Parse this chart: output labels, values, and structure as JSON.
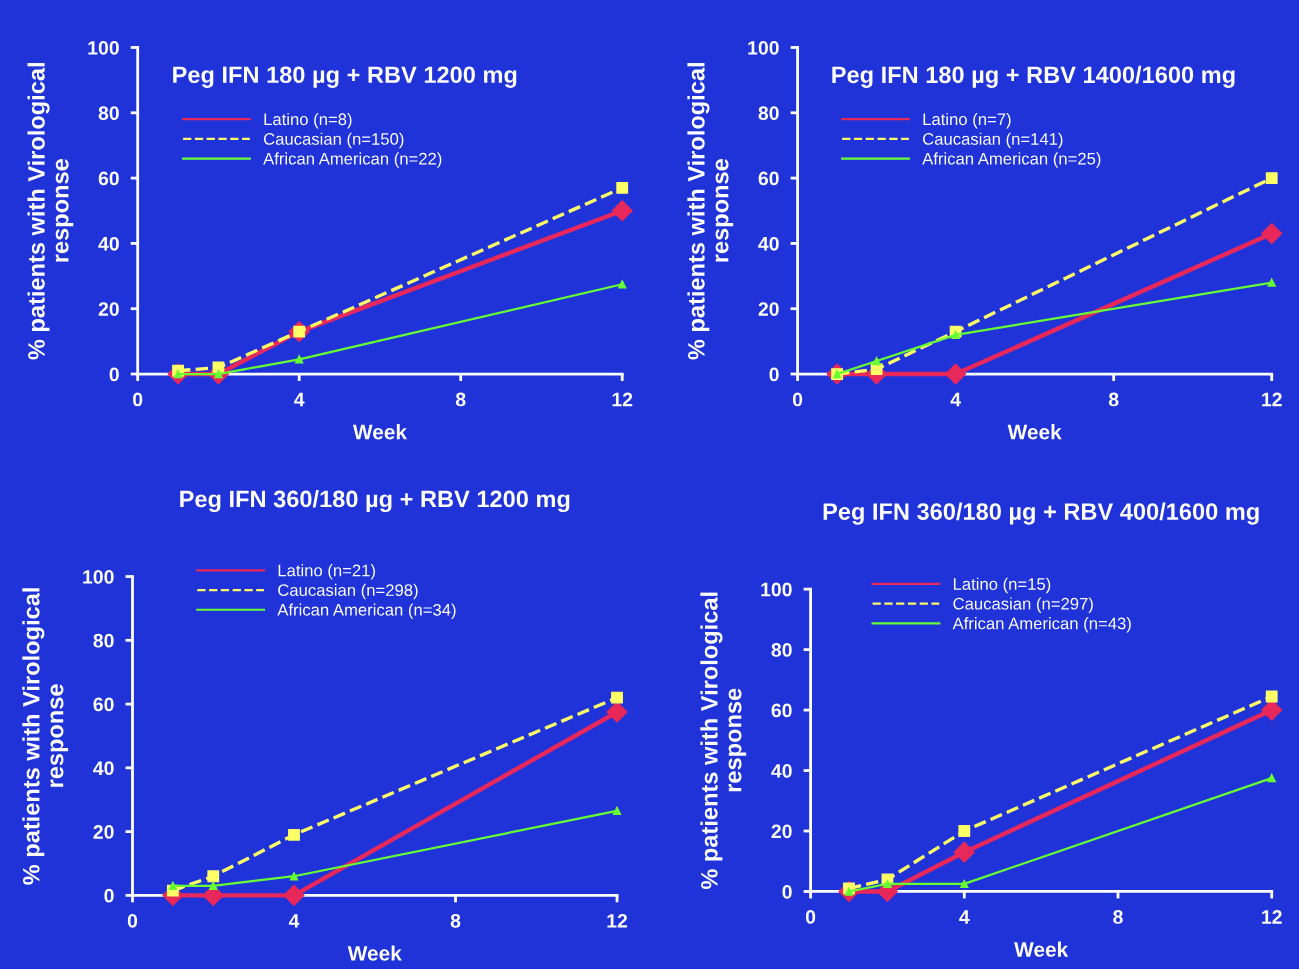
{
  "chart_data": [
    {
      "type": "line",
      "title": "Peg IFN 180 µg + RBV 1200 mg",
      "xlabel": "Week",
      "ylabel": "% patients with Virological\nresponse",
      "x": [
        1,
        2,
        4,
        12
      ],
      "xlim": [
        0,
        12
      ],
      "xticks": [
        0,
        4,
        8,
        12
      ],
      "ylim": [
        0,
        100
      ],
      "yticks": [
        0,
        20,
        40,
        60,
        80,
        100
      ],
      "grid": false,
      "legend": "top left",
      "series": [
        {
          "name": "Latino (n=8)",
          "color": "#e8285a",
          "marker": "diamond",
          "line_style": "solid",
          "values": [
            0,
            0,
            13,
            50
          ]
        },
        {
          "name": "Caucasian (n=150)",
          "color": "#ffff66",
          "marker": "square",
          "line_style": "dashed",
          "values": [
            1,
            2,
            13,
            57
          ]
        },
        {
          "name": "African American (n=22)",
          "color": "#66ff33",
          "marker": "triangle",
          "line_style": "solid",
          "values": [
            0,
            0,
            4.5,
            27.5
          ]
        }
      ]
    },
    {
      "type": "line",
      "title": "Peg IFN 180 µg + RBV 1400/1600 mg",
      "xlabel": "Week",
      "ylabel": "% patients with Virological\nresponse",
      "x": [
        1,
        2,
        4,
        12
      ],
      "xlim": [
        0,
        12
      ],
      "xticks": [
        0,
        4,
        8,
        12
      ],
      "ylim": [
        0,
        100
      ],
      "yticks": [
        0,
        20,
        40,
        60,
        80,
        100
      ],
      "grid": false,
      "legend": "top left",
      "series": [
        {
          "name": "Latino (n=7)",
          "color": "#e8285a",
          "marker": "diamond",
          "line_style": "solid",
          "values": [
            0,
            0,
            0,
            43
          ]
        },
        {
          "name": "Caucasian (n=141)",
          "color": "#ffff66",
          "marker": "square",
          "line_style": "dashed",
          "values": [
            0,
            1.5,
            13,
            60
          ]
        },
        {
          "name": "African American (n=25)",
          "color": "#66ff33",
          "marker": "triangle",
          "line_style": "solid",
          "values": [
            0,
            4,
            12,
            28
          ]
        }
      ]
    },
    {
      "type": "line",
      "title": "Peg IFN 360/180 µg + RBV 1200 mg",
      "xlabel": "Week",
      "ylabel": "% patients with Virological\nresponse",
      "x": [
        1,
        2,
        4,
        12
      ],
      "xlim": [
        0,
        12
      ],
      "xticks": [
        0,
        4,
        8,
        12
      ],
      "ylim": [
        0,
        100
      ],
      "yticks": [
        0,
        20,
        40,
        60,
        80,
        100
      ],
      "grid": false,
      "legend": "top left",
      "series": [
        {
          "name": "Latino (n=21)",
          "color": "#e8285a",
          "marker": "diamond",
          "line_style": "solid",
          "values": [
            0,
            0,
            0,
            57.5
          ]
        },
        {
          "name": "Caucasian (n=298)",
          "color": "#ffff66",
          "marker": "square",
          "line_style": "dashed",
          "values": [
            1.5,
            6,
            19,
            62
          ]
        },
        {
          "name": "African American (n=34)",
          "color": "#66ff33",
          "marker": "triangle",
          "line_style": "solid",
          "values": [
            3,
            3,
            6,
            26.5
          ]
        }
      ]
    },
    {
      "type": "line",
      "title": "Peg IFN 360/180 µg + RBV 400/1600 mg",
      "xlabel": "Week",
      "ylabel": "% patients with Virological\nresponse",
      "x": [
        1,
        2,
        4,
        12
      ],
      "xlim": [
        0,
        12
      ],
      "xticks": [
        0,
        4,
        8,
        12
      ],
      "ylim": [
        0,
        100
      ],
      "yticks": [
        0,
        20,
        40,
        60,
        80,
        100
      ],
      "grid": false,
      "legend": "top left",
      "series": [
        {
          "name": "Latino (n=15)",
          "color": "#e8285a",
          "marker": "diamond",
          "line_style": "solid",
          "values": [
            0,
            0,
            13,
            60
          ]
        },
        {
          "name": "Caucasian (n=297)",
          "color": "#ffff66",
          "marker": "square",
          "line_style": "dashed",
          "values": [
            1,
            4,
            20,
            64.5
          ]
        },
        {
          "name": "African American (n=43)",
          "color": "#66ff33",
          "marker": "triangle",
          "line_style": "solid",
          "values": [
            0,
            2.5,
            2.5,
            37.5
          ]
        }
      ]
    }
  ]
}
